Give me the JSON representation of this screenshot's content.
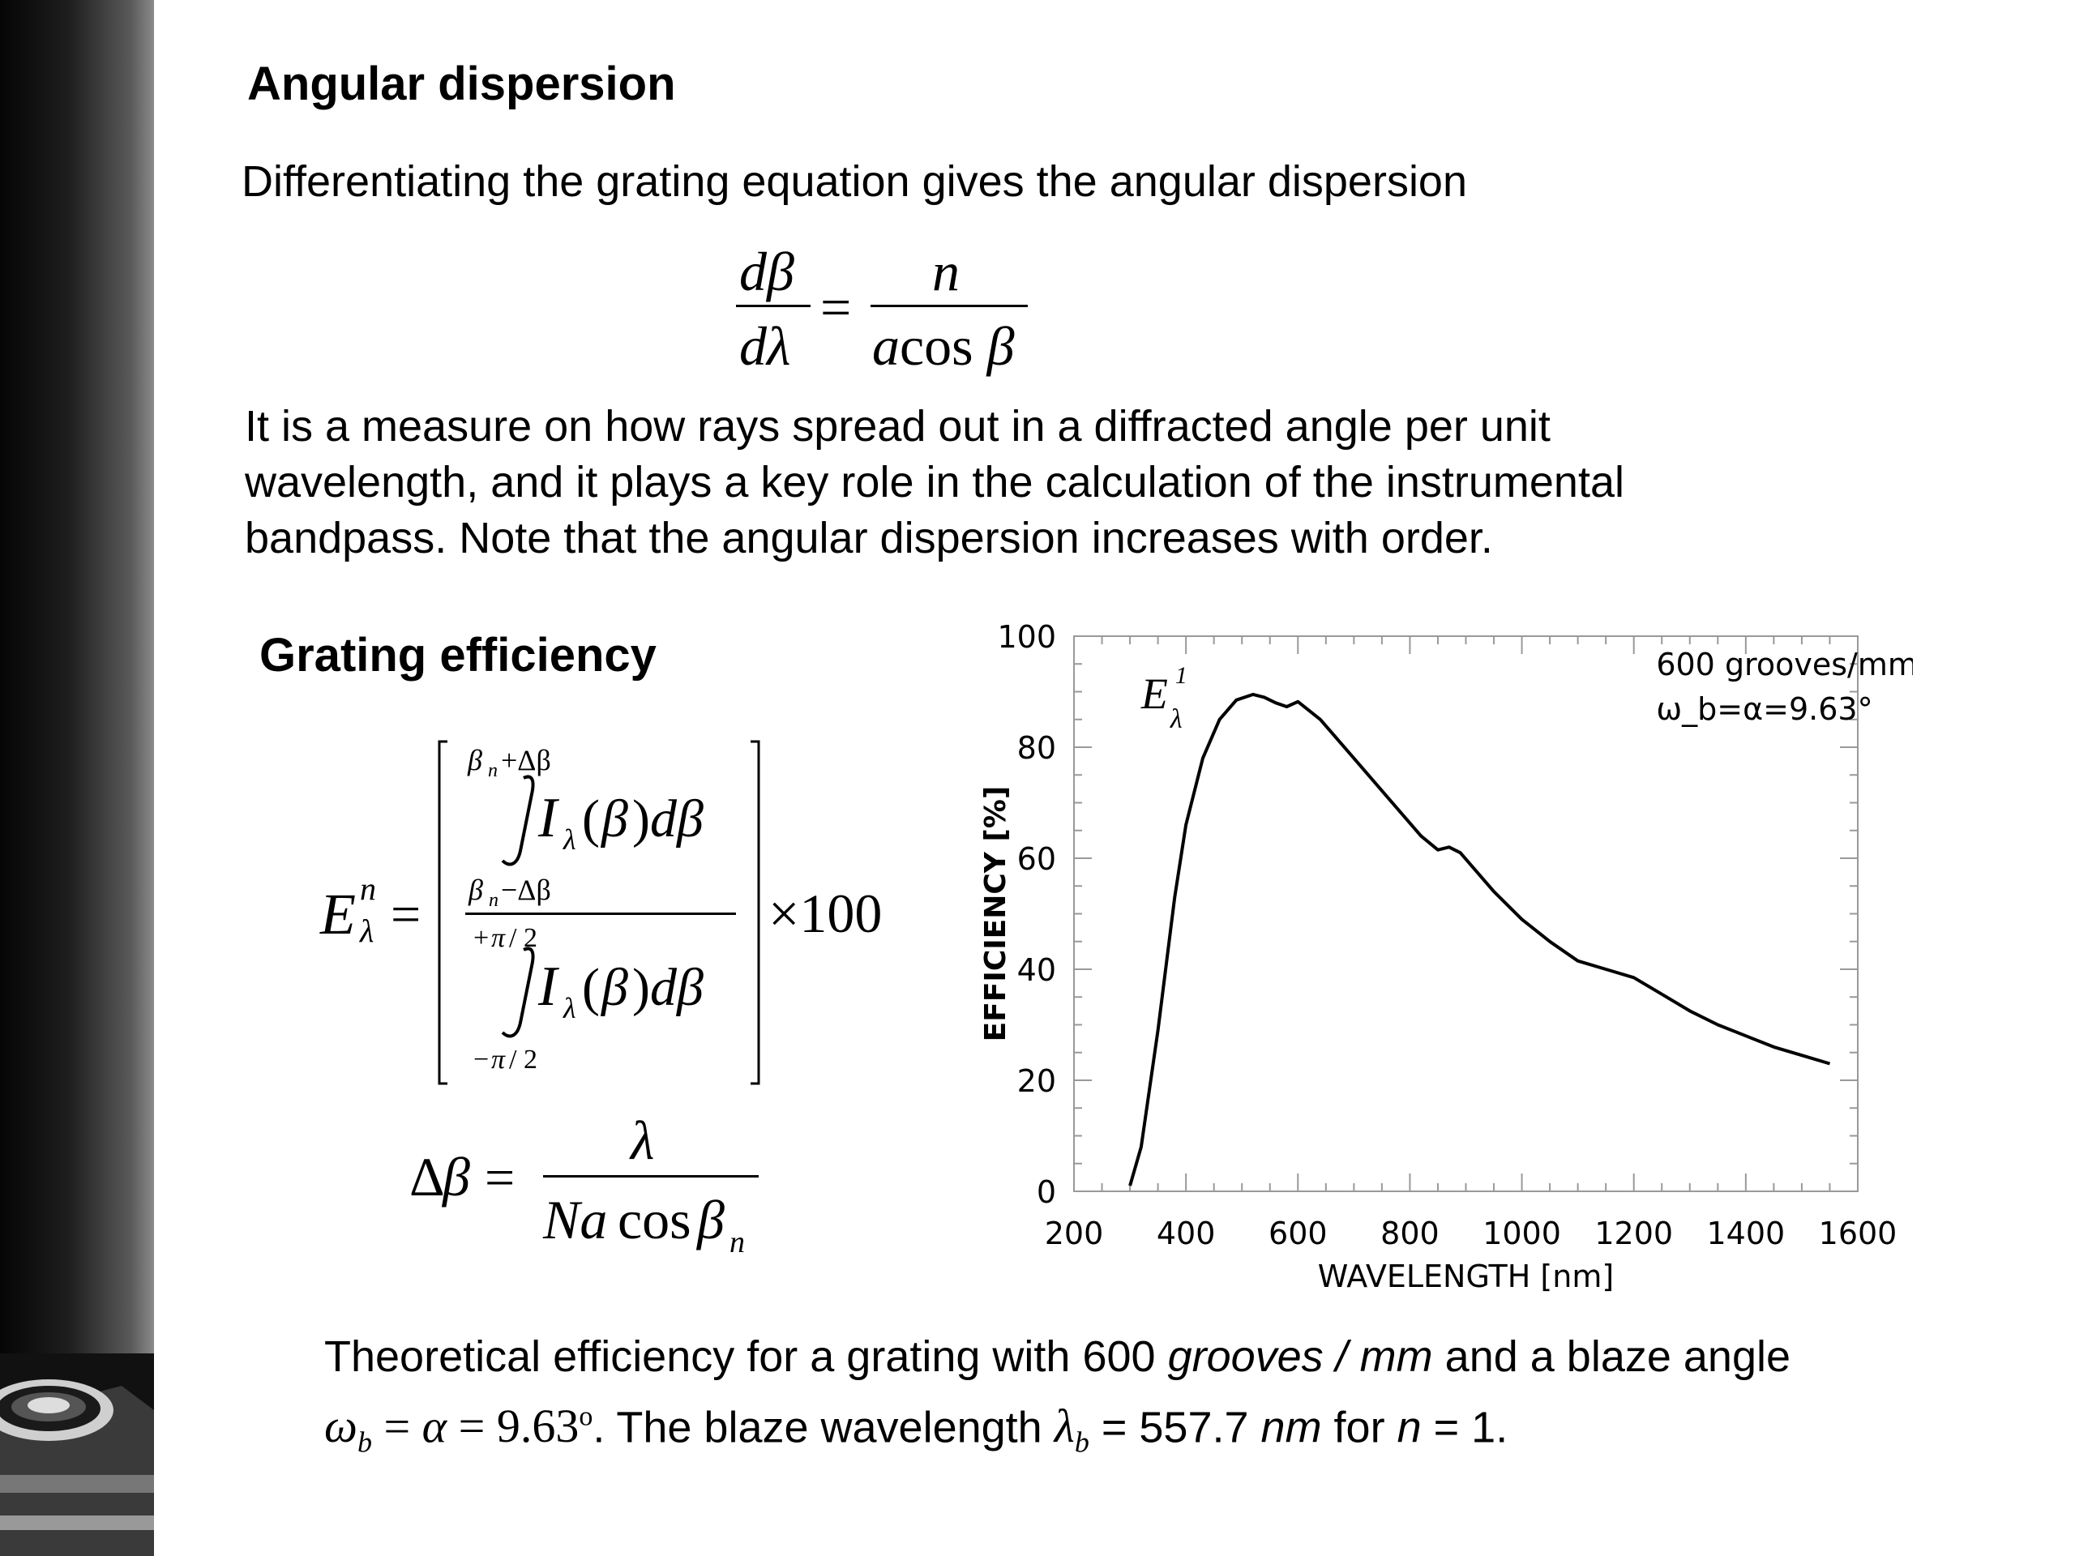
{
  "section1": {
    "heading": "Angular dispersion",
    "intro": "Differentiating the grating equation gives the angular dispersion",
    "paragraph": [
      "It is a measure on how rays spread out in a diffracted angle per unit",
      "wavelength, and it plays a key role in the calculation of the instrumental",
      "bandpass. Note that the angular dispersion increases with order."
    ]
  },
  "section2": {
    "heading": "Grating efficiency"
  },
  "caption": {
    "line1_a": "Theoretical efficiency for a grating with 600 ",
    "line1_b": "grooves / mm",
    "line1_c": " and a blaze angle",
    "line2_a": ". The blaze wavelength ",
    "line2_b": " = 557.7 ",
    "line2_c": "nm",
    "line2_d": " for ",
    "line2_e": "n",
    "line2_f": " = 1."
  },
  "chart_data": {
    "type": "line",
    "title": "",
    "xlabel": "WAVELENGTH [nm]",
    "ylabel": "EFFICIENCY [%]",
    "xlim": [
      200,
      1600
    ],
    "ylim": [
      0,
      100
    ],
    "xticks": [
      200,
      400,
      600,
      800,
      1000,
      1200,
      1400,
      1600
    ],
    "yticks": [
      0,
      20,
      40,
      60,
      80,
      100
    ],
    "annotations": [
      "600 grooves/mm",
      "ω_b=α=9.63°",
      "E_λ^1"
    ],
    "grid": false,
    "series": [
      {
        "x": [
          300,
          320,
          350,
          380,
          400,
          430,
          460,
          490,
          520,
          540,
          560,
          580,
          600,
          640,
          700,
          760,
          820,
          850,
          870,
          890,
          950,
          1000,
          1050,
          1100,
          1150,
          1200,
          1250,
          1300,
          1350,
          1400,
          1450,
          1500,
          1550
        ],
        "y": [
          1,
          8,
          29,
          53,
          66,
          78,
          85,
          88.5,
          89.5,
          89,
          88,
          87.3,
          88.2,
          85,
          78,
          71,
          64,
          61.5,
          62,
          61,
          54,
          49,
          45,
          41.5,
          40,
          38.5,
          35.5,
          32.5,
          30,
          28,
          26,
          24.5,
          23
        ]
      }
    ]
  }
}
